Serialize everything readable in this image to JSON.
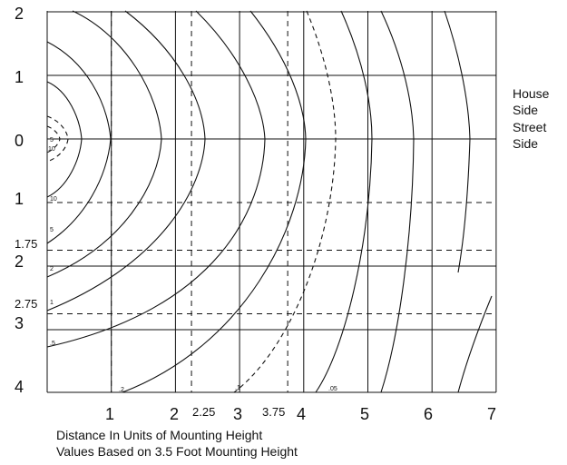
{
  "chart_data": {
    "type": "isolux-diagram",
    "x_labels": [
      "1",
      "2",
      "3",
      "4",
      "5",
      "6",
      "7"
    ],
    "x_sub_labels": [
      "2.25",
      "3.75"
    ],
    "y_labels": [
      "2",
      "1",
      "0",
      "1",
      "2",
      "3",
      "4"
    ],
    "y_sub_labels": [
      "1.75",
      "2.75"
    ],
    "x_range": [
      0,
      7
    ],
    "y_range": [
      -2,
      4
    ],
    "grid_x": [
      1,
      2,
      3,
      4,
      5,
      6,
      7
    ],
    "grid_y_solid": [
      -2,
      -1,
      0,
      2,
      3
    ],
    "grid_y_dashed": [
      1,
      1.75,
      2.75
    ],
    "grid_x_dashed": [
      1,
      2.25,
      3.75
    ],
    "side_labels": {
      "house": [
        "House",
        "Side"
      ],
      "street": [
        "Street",
        "Side"
      ]
    },
    "isolines": [
      {
        "label": "10",
        "x_axis_cross": 0.22,
        "dashed": true
      },
      {
        "label": "5",
        "x_axis_cross": 0.35,
        "dashed": true
      },
      {
        "label": "10",
        "x_axis_cross": 0.58
      },
      {
        "label": "5",
        "x_axis_cross": 1.0
      },
      {
        "label": "2",
        "x_axis_cross": 1.6
      },
      {
        "label": "1",
        "x_axis_cross": 2.2
      },
      {
        "label": ".5",
        "x_axis_cross": 3.05
      },
      {
        "label": ".2",
        "x_axis_cross": 3.9
      },
      {
        "label": ".1",
        "x_axis_cross": 4.35,
        "dashed": true
      },
      {
        "label": ".05",
        "x_axis_cross": 4.95
      },
      {
        "label": "",
        "x_axis_cross": 5.6
      },
      {
        "label": "",
        "x_axis_cross": 6.45
      }
    ]
  },
  "caption": {
    "line1": "Distance In Units of Mounting Height",
    "line2": "Values Based on 3.5 Foot Mounting Height"
  }
}
